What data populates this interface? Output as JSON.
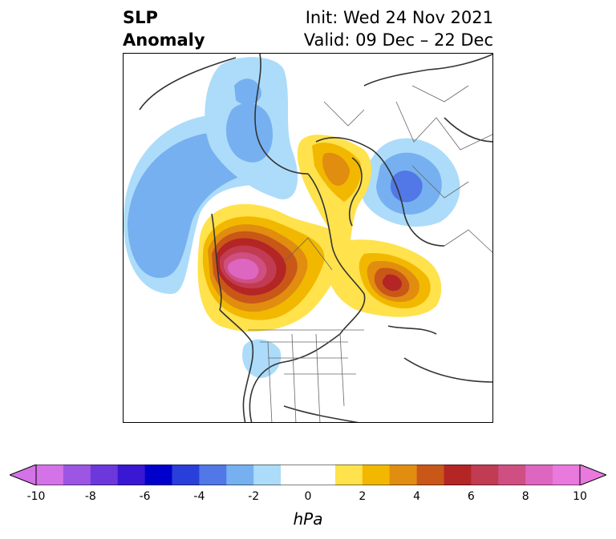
{
  "header": {
    "title_line1": "SLP",
    "title_line2": "Anomaly",
    "init_text": "Init: Wed 24 Nov 2021",
    "valid_text": "Valid: 09 Dec – 22 Dec"
  },
  "map": {
    "projection": "north-polar-stereographic",
    "features": [
      {
        "name": "negative-anomaly-north-pacific",
        "sign": "negative",
        "peak_hpa": -3
      },
      {
        "name": "negative-anomaly-alaska-east-siberia",
        "sign": "negative",
        "peak_hpa": -3
      },
      {
        "name": "negative-anomaly-ural-siberia",
        "sign": "negative",
        "peak_hpa": -4
      },
      {
        "name": "negative-anomaly-western-us",
        "sign": "negative",
        "peak_hpa": -2
      },
      {
        "name": "positive-anomaly-arctic-ocean",
        "sign": "positive",
        "peak_hpa": 4
      },
      {
        "name": "positive-anomaly-western-canada",
        "sign": "positive",
        "peak_hpa": 9
      },
      {
        "name": "positive-anomaly-north-atlantic",
        "sign": "positive",
        "peak_hpa": 6
      }
    ]
  },
  "colorbar": {
    "unit": "hPa",
    "min": -10,
    "max": 10,
    "levels": [
      -10,
      -9,
      -8,
      -7,
      -6,
      -5,
      -4,
      -3,
      -2,
      -1,
      1,
      2,
      3,
      4,
      5,
      6,
      7,
      8,
      9,
      10
    ],
    "tick_labels": [
      "-10",
      "-8",
      "-6",
      "-4",
      "-2",
      "0",
      "2",
      "4",
      "6",
      "8",
      "10"
    ],
    "tick_values": [
      -10,
      -8,
      -6,
      -4,
      -2,
      0,
      2,
      4,
      6,
      8,
      10
    ],
    "colors": [
      "#d472e8",
      "#9d55e3",
      "#6c38db",
      "#3a17d2",
      "#0000cc",
      "#2a3fd9",
      "#5178e6",
      "#76b0f0",
      "#acdcf9",
      "#ffffff",
      "#ffffff",
      "#ffe24c",
      "#f2b800",
      "#e08d10",
      "#c95718",
      "#b42525",
      "#c13c52",
      "#cf4f82",
      "#dd66c0",
      "#e979dd"
    ],
    "under_color": "#d472e8",
    "over_color": "#e979dd"
  }
}
